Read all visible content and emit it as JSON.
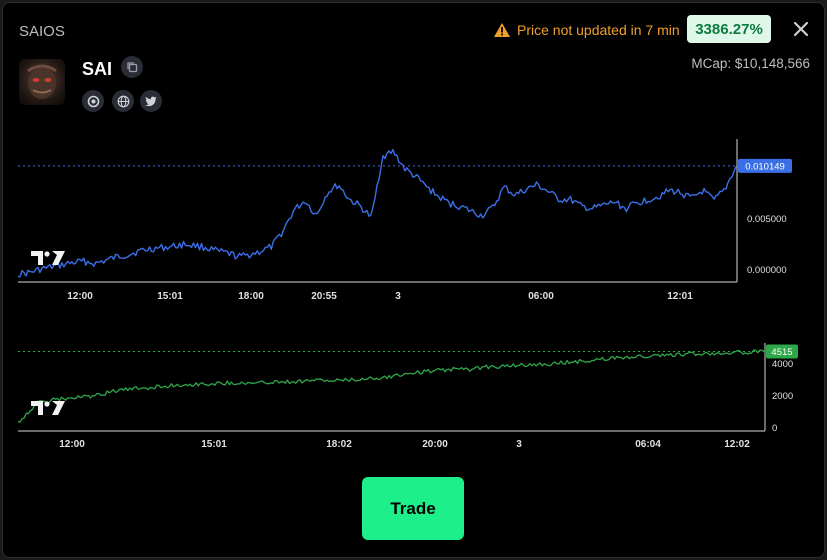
{
  "header": {
    "app_title": "SAIOS",
    "warning_text": "Price not updated in 7 min",
    "percent_badge": "3386.27%",
    "close_icon": "close-icon",
    "warning_icon": "warning-triangle-icon"
  },
  "token": {
    "name": "SAI",
    "mcap": "MCap: $10,148,566",
    "socials": [
      "telegram-icon",
      "globe-icon",
      "twitter-icon"
    ]
  },
  "colors": {
    "price_line": "#3b6fe6",
    "volume_line": "#2ea64a",
    "price_label_bg": "#3b6fe6",
    "volume_label_bg": "#2ea64a",
    "trade_button": "#1df08a"
  },
  "chart_data": [
    {
      "type": "line",
      "title": "",
      "xlabel": "",
      "ylabel": "",
      "x_ticks": [
        "12:00",
        "15:01",
        "18:00",
        "20:55",
        "3",
        "06:00",
        "12:01"
      ],
      "y_ticks": [
        "0.010149",
        "0.005000",
        "0.000000"
      ],
      "current_value_label": "0.010149",
      "current_value": 0.010149,
      "ylim": [
        0,
        0.0125
      ],
      "grid": false,
      "series": [
        {
          "values": [
            0.0007,
            0.0008,
            0.0011,
            0.0013,
            0.0015,
            0.0017,
            0.0018,
            0.0016,
            0.0019,
            0.0022,
            0.0024,
            0.0027,
            0.0029,
            0.003,
            0.0031,
            0.0033,
            0.0032,
            0.003,
            0.0027,
            0.0025,
            0.0022,
            0.0024,
            0.0027,
            0.0031,
            0.0045,
            0.0063,
            0.0071,
            0.0058,
            0.0078,
            0.0085,
            0.0072,
            0.0066,
            0.0056,
            0.011,
            0.0114,
            0.0099,
            0.0092,
            0.0083,
            0.0075,
            0.0069,
            0.0066,
            0.0062,
            0.0058,
            0.0065,
            0.0083,
            0.0076,
            0.0081,
            0.0085,
            0.0079,
            0.0072,
            0.0072,
            0.0066,
            0.0064,
            0.0067,
            0.007,
            0.0064,
            0.0069,
            0.0072,
            0.0075,
            0.008,
            0.0078,
            0.0073,
            0.008,
            0.0071,
            0.0081,
            0.0101
          ]
        }
      ]
    },
    {
      "type": "line",
      "title": "",
      "xlabel": "",
      "ylabel": "",
      "x_ticks": [
        "12:00",
        "15:01",
        "18:02",
        "20:00",
        "3",
        "06:04",
        "12:02"
      ],
      "y_ticks": [
        "4000",
        "2000",
        "0"
      ],
      "current_value_label": "4515",
      "current_value": 4515,
      "ylim": [
        0,
        5000
      ],
      "grid": false,
      "series": [
        {
          "values": [
            500,
            1600,
            1800,
            1900,
            2000,
            2300,
            2400,
            2500,
            2600,
            2650,
            2700,
            2750,
            2700,
            2800,
            2800,
            2900,
            2850,
            2900,
            3000,
            3100,
            3300,
            3400,
            3500,
            3500,
            3650,
            3700,
            3750,
            3800,
            3900,
            4000,
            4100,
            4200,
            4250,
            4300,
            4350,
            4400,
            4450,
            4480,
            4515
          ]
        }
      ]
    }
  ],
  "actions": {
    "trade_label": "Trade"
  }
}
